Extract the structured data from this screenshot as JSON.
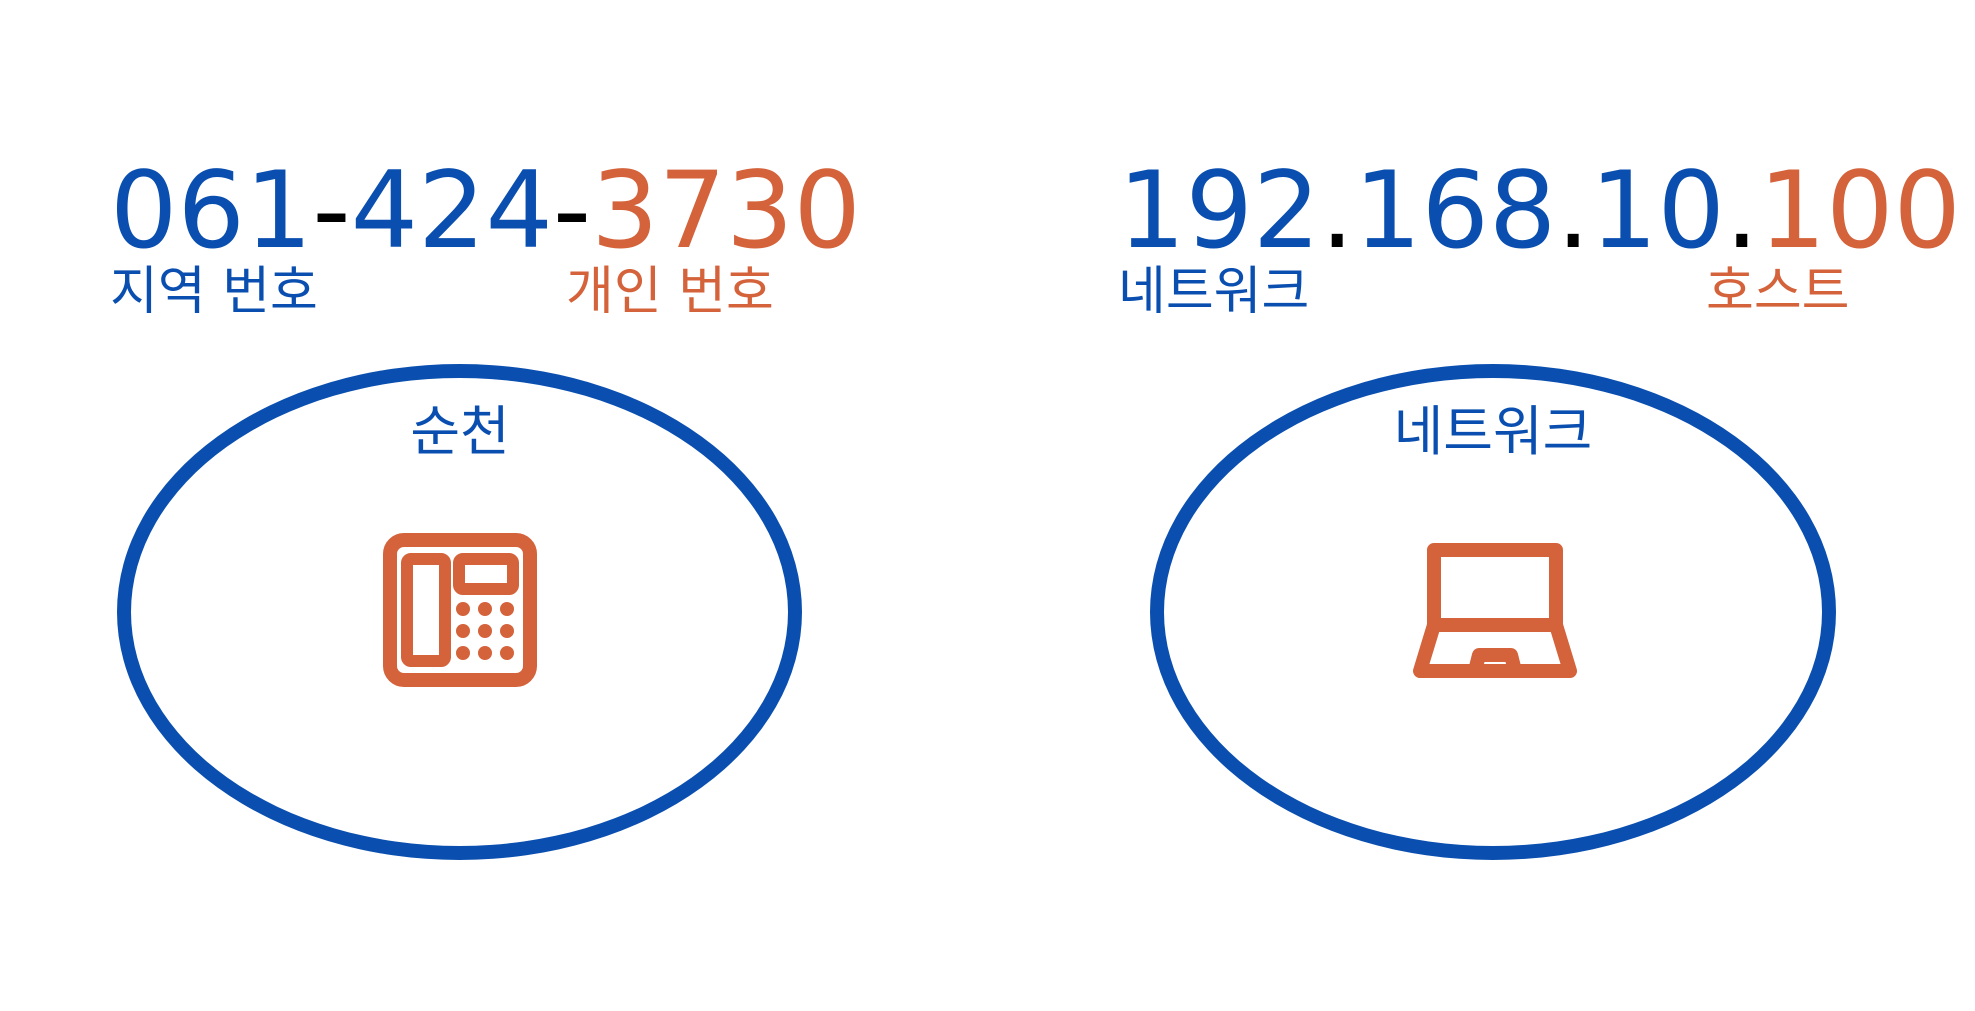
{
  "colors": {
    "network": "#0a4fb0",
    "host": "#d4623a",
    "separator": "#000000"
  },
  "phone": {
    "parts": [
      {
        "text": "061",
        "role": "area"
      },
      {
        "text": "-",
        "role": "sep"
      },
      {
        "text": "424",
        "role": "area"
      },
      {
        "text": "-",
        "role": "sep"
      },
      {
        "text": "3730",
        "role": "personal"
      }
    ],
    "area_label": "지역 번호",
    "personal_label": "개인 번호",
    "circle_title": "순천",
    "icon": "telephone-icon"
  },
  "ip": {
    "parts": [
      {
        "text": "192",
        "role": "network"
      },
      {
        "text": ".",
        "role": "sep"
      },
      {
        "text": "168",
        "role": "network"
      },
      {
        "text": ".",
        "role": "sep"
      },
      {
        "text": "10",
        "role": "network"
      },
      {
        "text": ".",
        "role": "sep"
      },
      {
        "text": "100",
        "role": "host"
      }
    ],
    "network_label": "네트워크",
    "host_label": "호스트",
    "circle_title": "네트워크",
    "icon": "laptop-icon"
  }
}
